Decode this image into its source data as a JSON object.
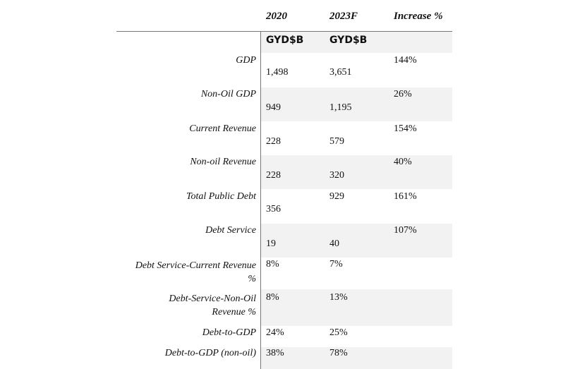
{
  "headers": {
    "col1": "2020",
    "col2": "2023F",
    "col3": "Increase %"
  },
  "units": {
    "col1": "GYD$B",
    "col2": "GYD$B"
  },
  "rows": [
    {
      "label": "GDP",
      "v2020": "1,498",
      "v2023": "3,651",
      "inc": "144%"
    },
    {
      "label": "Non-Oil GDP",
      "v2020": "949",
      "v2023": "1,195",
      "inc": "26%"
    },
    {
      "label": "Current Revenue",
      "v2020": "228",
      "v2023": "579",
      "inc": "154%"
    },
    {
      "label": "Non-oil Revenue",
      "v2020": "228",
      "v2023": "320",
      "inc": "40%"
    },
    {
      "label": "Total Public Debt",
      "v2020": "356",
      "v2023": "929",
      "inc": "161%"
    },
    {
      "label": "Debt Service",
      "v2020": "19",
      "v2023": "40",
      "inc": "107%"
    },
    {
      "label_line1": "Debt Service-Current Revenue",
      "label_line2": "%",
      "v2020": "8%",
      "v2023": "7%"
    },
    {
      "label_line1": "Debt-Service-Non-Oil",
      "label_line2": "Revenue %",
      "v2020": "8%",
      "v2023": "13%"
    },
    {
      "label": "Debt-to-GDP",
      "v2020": "24%",
      "v2023": "25%"
    },
    {
      "label": "Debt-to-GDP (non-oil)",
      "v2020": "38%",
      "v2023": "78%"
    }
  ]
}
